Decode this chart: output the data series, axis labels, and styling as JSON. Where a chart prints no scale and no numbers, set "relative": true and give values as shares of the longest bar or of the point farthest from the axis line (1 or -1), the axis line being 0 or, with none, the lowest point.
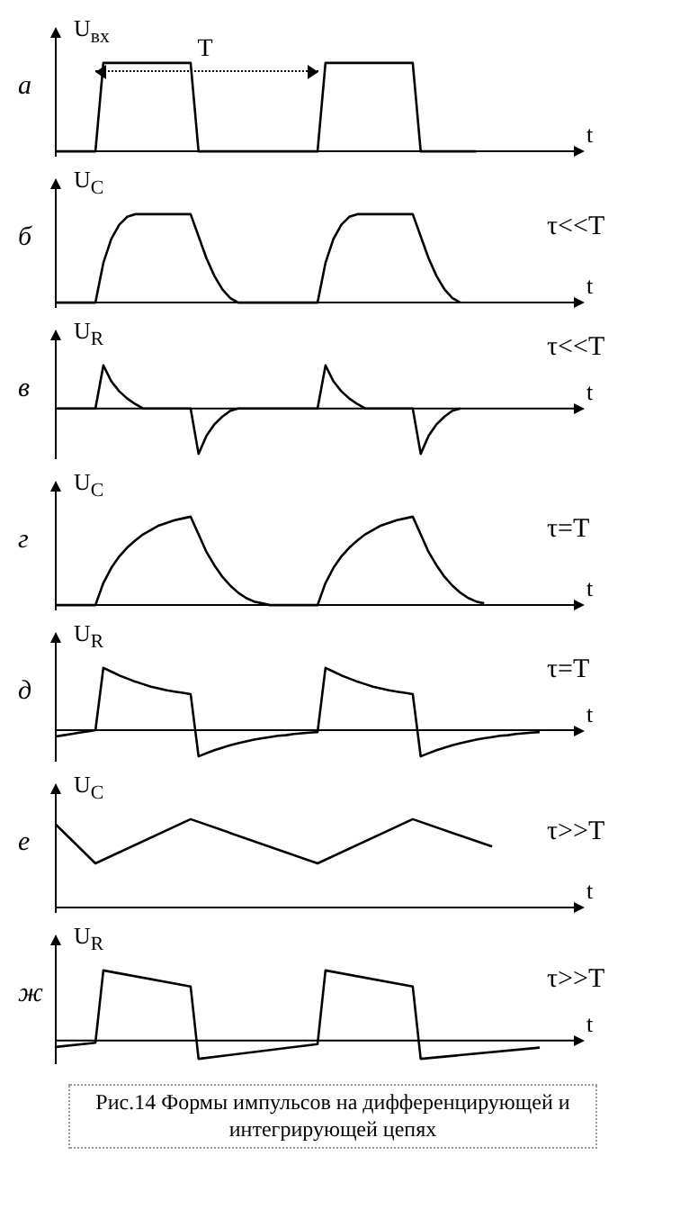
{
  "chart_data": [
    {
      "type": "line",
      "relative": true,
      "ylabel": "U$_{вх}$",
      "xlabel": "t",
      "annotations": [
        "а",
        "T"
      ],
      "categories": [
        null,
        null,
        null,
        null,
        null,
        null,
        null,
        null,
        null,
        null,
        null,
        null,
        null,
        null,
        null,
        null,
        null,
        null,
        null,
        null,
        null,
        null,
        null,
        null,
        null,
        null,
        null,
        null,
        null,
        null,
        null,
        null,
        null,
        null,
        null,
        null,
        null,
        null,
        null,
        null,
        null,
        null,
        null,
        null,
        null,
        null,
        null,
        null,
        null,
        null,
        null,
        null,
        null,
        null,
        null,
        null,
        null,
        null,
        null,
        null,
        null,
        null
      ],
      "color": "#000000",
      "values": [
        0,
        0,
        0,
        0,
        0,
        0,
        1,
        1,
        1,
        1,
        1,
        1,
        1,
        1,
        1,
        1,
        1,
        1,
        0,
        0,
        0,
        0,
        0,
        0,
        0,
        0,
        0,
        0,
        0,
        0,
        0,
        0,
        0,
        0,
        1,
        1,
        1,
        1,
        1,
        1,
        1,
        1,
        1,
        1,
        1,
        1,
        0,
        0,
        0,
        0,
        0,
        0,
        0,
        0,
        null,
        null,
        null,
        null,
        null,
        null,
        null,
        null
      ]
    },
    {
      "type": "line",
      "relative": true,
      "ylabel": "U$_{C}$",
      "xlabel": "t",
      "annotations": [
        "б",
        "τ<<T"
      ],
      "categories": [
        null,
        null,
        null,
        null,
        null,
        null,
        null,
        null,
        null,
        null,
        null,
        null,
        null,
        null,
        null,
        null,
        null,
        null,
        null,
        null,
        null,
        null,
        null,
        null,
        null,
        null,
        null,
        null,
        null,
        null,
        null,
        null,
        null,
        null,
        null,
        null,
        null,
        null,
        null,
        null,
        null,
        null,
        null,
        null,
        null,
        null,
        null,
        null,
        null,
        null,
        null,
        null,
        null,
        null,
        null,
        null,
        null,
        null,
        null,
        null,
        null,
        null
      ],
      "color": "#000000",
      "values": [
        0,
        0,
        0,
        0,
        0,
        0,
        0.45,
        0.72,
        0.88,
        0.97,
        1,
        1,
        1,
        1,
        1,
        1,
        1,
        1,
        0.75,
        0.5,
        0.3,
        0.15,
        0.05,
        0,
        0,
        0,
        0,
        0,
        0,
        0,
        0,
        0,
        0,
        0,
        0.45,
        0.72,
        0.88,
        0.97,
        1,
        1,
        1,
        1,
        1,
        1,
        1,
        1,
        0.75,
        0.5,
        0.3,
        0.15,
        0.05,
        0,
        null,
        null,
        null,
        null,
        null,
        null,
        null,
        null,
        null,
        null
      ]
    },
    {
      "type": "line",
      "relative": true,
      "ylabel": "U$_{R}$",
      "xlabel": "t",
      "annotations": [
        "в",
        "τ<<T"
      ],
      "categories": [
        null,
        null,
        null,
        null,
        null,
        null,
        null,
        null,
        null,
        null,
        null,
        null,
        null,
        null,
        null,
        null,
        null,
        null,
        null,
        null,
        null,
        null,
        null,
        null,
        null,
        null,
        null,
        null,
        null,
        null,
        null,
        null,
        null,
        null,
        null,
        null,
        null,
        null,
        null,
        null,
        null,
        null,
        null,
        null,
        null,
        null,
        null,
        null,
        null,
        null,
        null,
        null,
        null,
        null,
        null,
        null,
        null,
        null,
        null,
        null,
        null,
        null
      ],
      "color": "#000000",
      "values": [
        0,
        0,
        0,
        0,
        0,
        0,
        0.95,
        0.6,
        0.38,
        0.22,
        0.1,
        0,
        0,
        0,
        0,
        0,
        0,
        0,
        -1,
        -0.6,
        -0.35,
        -0.18,
        -0.05,
        0,
        0,
        0,
        0,
        0,
        0,
        0,
        0,
        0,
        0,
        0,
        0.95,
        0.6,
        0.38,
        0.22,
        0.1,
        0,
        0,
        0,
        0,
        0,
        0,
        0,
        -1,
        -0.6,
        -0.35,
        -0.18,
        -0.05,
        0,
        null,
        null,
        null,
        null,
        null,
        null,
        null,
        null,
        null,
        null
      ]
    },
    {
      "type": "line",
      "relative": true,
      "ylabel": "U$_{C}$",
      "xlabel": "t",
      "annotations": [
        "г",
        "τ=T"
      ],
      "categories": [
        null,
        null,
        null,
        null,
        null,
        null,
        null,
        null,
        null,
        null,
        null,
        null,
        null,
        null,
        null,
        null,
        null,
        null,
        null,
        null,
        null,
        null,
        null,
        null,
        null,
        null,
        null,
        null,
        null,
        null,
        null,
        null,
        null,
        null,
        null,
        null,
        null,
        null,
        null,
        null,
        null,
        null,
        null,
        null,
        null,
        null,
        null,
        null,
        null,
        null,
        null,
        null,
        null,
        null,
        null,
        null,
        null,
        null,
        null,
        null,
        null,
        null
      ],
      "color": "#000000",
      "values": [
        0,
        0,
        0,
        0,
        0,
        0,
        0.25,
        0.42,
        0.55,
        0.65,
        0.73,
        0.8,
        0.85,
        0.9,
        0.93,
        0.96,
        0.98,
        1,
        0.8,
        0.6,
        0.45,
        0.32,
        0.22,
        0.14,
        0.08,
        0.04,
        0.02,
        0,
        0,
        0,
        0,
        0,
        0,
        0,
        0.25,
        0.42,
        0.55,
        0.65,
        0.73,
        0.8,
        0.85,
        0.9,
        0.93,
        0.96,
        0.98,
        1,
        0.8,
        0.6,
        0.45,
        0.32,
        0.22,
        0.14,
        0.08,
        0.04,
        0.02,
        null,
        null,
        null,
        null,
        null,
        null,
        null
      ]
    },
    {
      "type": "line",
      "relative": true,
      "ylabel": "U$_{R}$",
      "xlabel": "t",
      "annotations": [
        "д",
        "τ=T"
      ],
      "categories": [
        null,
        null,
        null,
        null,
        null,
        null,
        null,
        null,
        null,
        null,
        null,
        null,
        null,
        null,
        null,
        null,
        null,
        null,
        null,
        null,
        null,
        null,
        null,
        null,
        null,
        null,
        null,
        null,
        null,
        null,
        null,
        null,
        null,
        null,
        null,
        null,
        null,
        null,
        null,
        null,
        null,
        null,
        null,
        null,
        null,
        null,
        null,
        null,
        null,
        null,
        null,
        null,
        null,
        null,
        null,
        null,
        null,
        null,
        null,
        null,
        null,
        null
      ],
      "color": "#000000",
      "values": [
        -0.1,
        -0.08,
        -0.06,
        -0.04,
        -0.02,
        0,
        1,
        0.94,
        0.88,
        0.83,
        0.78,
        0.74,
        0.7,
        0.67,
        0.64,
        0.62,
        0.6,
        0.58,
        -0.42,
        -0.37,
        -0.32,
        -0.28,
        -0.24,
        -0.21,
        -0.18,
        -0.15,
        -0.13,
        -0.11,
        -0.09,
        -0.08,
        -0.06,
        -0.05,
        -0.04,
        -0.03,
        1,
        0.94,
        0.88,
        0.83,
        0.78,
        0.74,
        0.7,
        0.67,
        0.64,
        0.62,
        0.6,
        0.58,
        -0.42,
        -0.37,
        -0.32,
        -0.28,
        -0.24,
        -0.21,
        -0.18,
        -0.15,
        -0.13,
        -0.11,
        -0.09,
        -0.08,
        -0.06,
        -0.05,
        -0.04,
        -0.03
      ]
    },
    {
      "type": "line",
      "relative": true,
      "ylabel": "U$_{C}$",
      "xlabel": "t",
      "annotations": [
        "е",
        "τ>>T"
      ],
      "categories": [
        null,
        null,
        null,
        null,
        null,
        null,
        null,
        null,
        null,
        null,
        null,
        null,
        null,
        null,
        null,
        null,
        null,
        null,
        null,
        null,
        null,
        null,
        null,
        null,
        null,
        null,
        null,
        null,
        null,
        null,
        null,
        null,
        null,
        null,
        null,
        null,
        null,
        null,
        null,
        null,
        null,
        null,
        null,
        null,
        null,
        null,
        null,
        null,
        null,
        null,
        null,
        null,
        null,
        null,
        null,
        null,
        null,
        null,
        null,
        null,
        null,
        null
      ],
      "color": "#000000",
      "values": [
        0.94,
        null,
        null,
        null,
        null,
        0.5,
        null,
        null,
        null,
        null,
        null,
        null,
        null,
        null,
        null,
        null,
        null,
        1,
        null,
        null,
        null,
        null,
        null,
        null,
        null,
        null,
        null,
        null,
        null,
        null,
        null,
        null,
        null,
        0.5,
        null,
        null,
        null,
        null,
        null,
        null,
        null,
        null,
        null,
        null,
        null,
        1,
        null,
        null,
        null,
        null,
        null,
        null,
        null,
        null,
        null,
        0.69,
        null,
        null,
        null,
        null,
        null,
        null
      ]
    },
    {
      "type": "line",
      "relative": true,
      "ylabel": "U$_{R}$",
      "xlabel": "t",
      "annotations": [
        "ж",
        "τ>>T",
        "Рис.14 Формы импульсов на дифференцирующей и интегрирующей цепях"
      ],
      "categories": [
        null,
        null,
        null,
        null,
        null,
        null,
        null,
        null,
        null,
        null,
        null,
        null,
        null,
        null,
        null,
        null,
        null,
        null,
        null,
        null,
        null,
        null,
        null,
        null,
        null,
        null,
        null,
        null,
        null,
        null,
        null,
        null,
        null,
        null,
        null,
        null,
        null,
        null,
        null,
        null,
        null,
        null,
        null,
        null,
        null,
        null,
        null,
        null,
        null,
        null,
        null,
        null,
        null,
        null,
        null,
        null,
        null,
        null,
        null,
        null,
        null,
        null
      ],
      "color": "#000000",
      "values": [
        -0.09,
        null,
        null,
        null,
        null,
        -0.03,
        1,
        null,
        null,
        null,
        null,
        null,
        null,
        null,
        null,
        null,
        null,
        0.77,
        -0.26,
        null,
        null,
        null,
        null,
        null,
        null,
        null,
        null,
        null,
        null,
        null,
        null,
        null,
        null,
        -0.05,
        1,
        null,
        null,
        null,
        null,
        null,
        null,
        null,
        null,
        null,
        null,
        0.77,
        -0.26,
        null,
        null,
        null,
        null,
        null,
        null,
        null,
        null,
        null,
        null,
        null,
        null,
        null,
        null,
        -0.1
      ]
    }
  ]
}
